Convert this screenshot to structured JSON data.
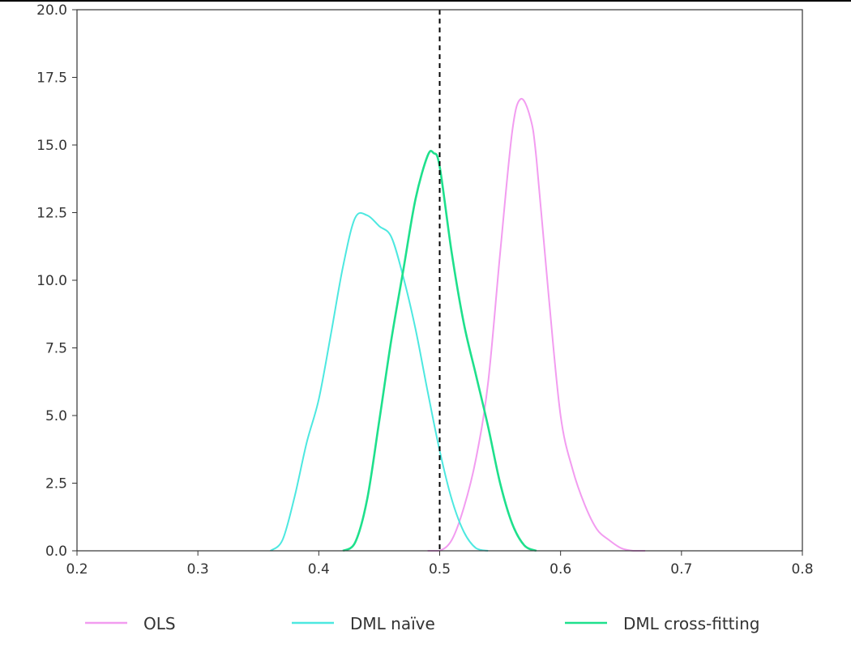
{
  "chart_data": {
    "type": "line",
    "title": "",
    "xlabel": "",
    "ylabel": "",
    "xlim": [
      0.2,
      0.8
    ],
    "ylim": [
      0.0,
      20.0
    ],
    "x_ticks": [
      0.2,
      0.3,
      0.4,
      0.5,
      0.6,
      0.7,
      0.8
    ],
    "x_tick_labels": [
      "0.2",
      "0.3",
      "0.4",
      "0.5",
      "0.6",
      "0.7",
      "0.8"
    ],
    "y_ticks": [
      0.0,
      2.5,
      5.0,
      7.5,
      10.0,
      12.5,
      15.0,
      17.5,
      20.0
    ],
    "y_tick_labels": [
      "0.0",
      "2.5",
      "5.0",
      "7.5",
      "10.0",
      "12.5",
      "15.0",
      "17.5",
      "20.0"
    ],
    "grid": false,
    "legend_position": "bottom",
    "reference_line": {
      "x": 0.5,
      "style": "dashed",
      "color": "#000000"
    },
    "series": [
      {
        "name": "OLS",
        "color": "#f29cf0",
        "x": [
          0.49,
          0.5,
          0.51,
          0.52,
          0.53,
          0.54,
          0.55,
          0.56,
          0.567,
          0.575,
          0.58,
          0.59,
          0.6,
          0.61,
          0.62,
          0.63,
          0.64,
          0.65,
          0.66,
          0.67
        ],
        "y": [
          0.0,
          0.0,
          0.4,
          1.6,
          3.4,
          6.2,
          11.0,
          15.5,
          16.7,
          16.0,
          14.5,
          9.5,
          5.0,
          3.0,
          1.7,
          0.8,
          0.4,
          0.1,
          0.0,
          0.0
        ]
      },
      {
        "name": "DML naïve",
        "color": "#4de8e0",
        "x": [
          0.36,
          0.37,
          0.38,
          0.39,
          0.4,
          0.41,
          0.42,
          0.43,
          0.44,
          0.45,
          0.46,
          0.47,
          0.48,
          0.49,
          0.5,
          0.51,
          0.52,
          0.53,
          0.54
        ],
        "y": [
          0.0,
          0.4,
          2.0,
          4.0,
          5.6,
          8.0,
          10.5,
          12.3,
          12.4,
          12.0,
          11.6,
          10.1,
          8.2,
          5.9,
          3.7,
          1.9,
          0.7,
          0.1,
          0.0
        ]
      },
      {
        "name": "DML cross-fitting",
        "color": "#1ee08c",
        "x": [
          0.42,
          0.43,
          0.44,
          0.45,
          0.46,
          0.47,
          0.48,
          0.49,
          0.495,
          0.5,
          0.51,
          0.52,
          0.53,
          0.54,
          0.55,
          0.56,
          0.57,
          0.58
        ],
        "y": [
          0.0,
          0.3,
          1.9,
          4.8,
          7.8,
          10.4,
          13.0,
          14.6,
          14.7,
          14.2,
          11.0,
          8.4,
          6.5,
          4.6,
          2.5,
          1.0,
          0.2,
          0.0
        ]
      }
    ]
  }
}
